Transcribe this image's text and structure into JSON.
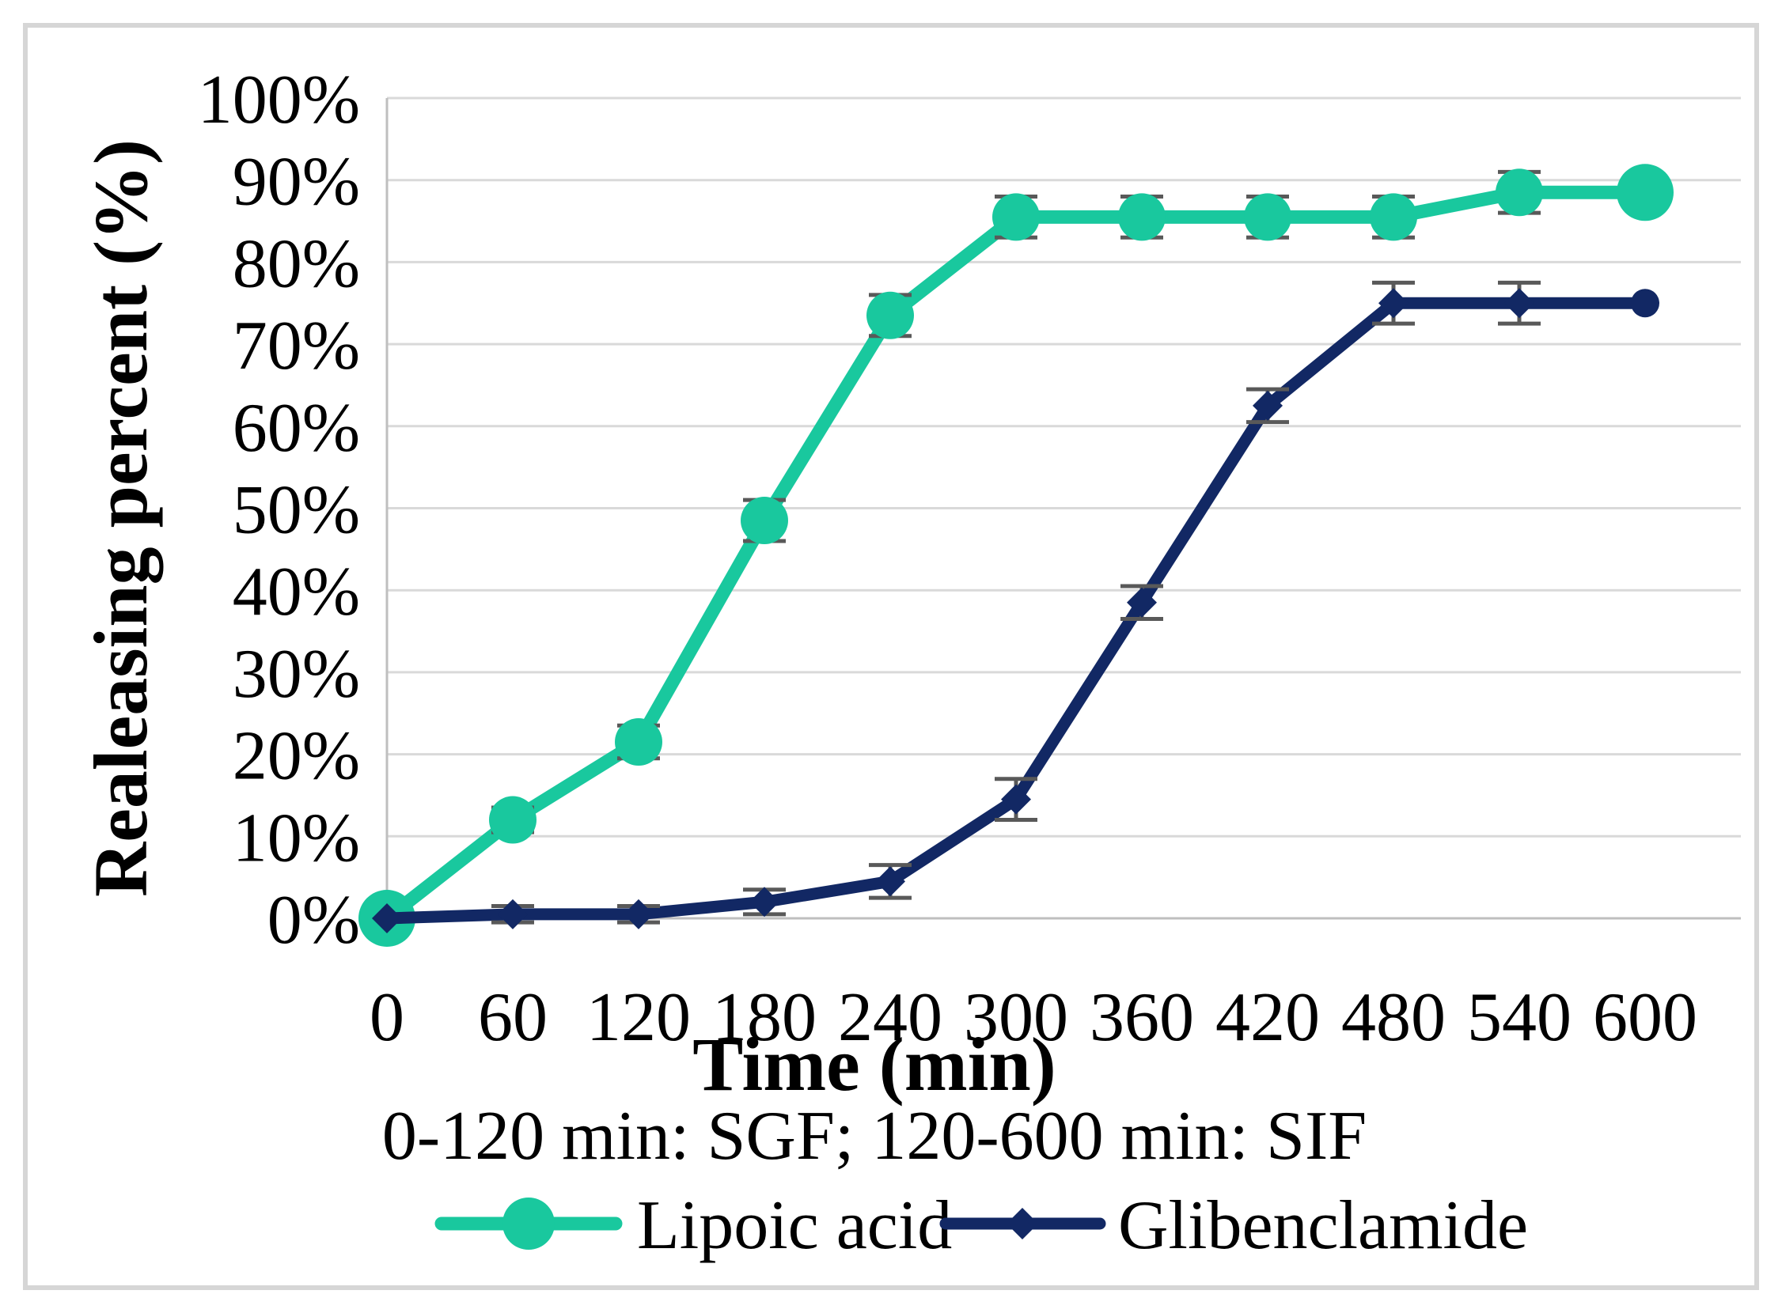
{
  "chart_data": {
    "type": "line",
    "title": "",
    "xlabel": "Time (min)",
    "x_sublabel": "0-120 min: SGF; 120-600 min: SIF",
    "ylabel": "Realeasing percent (%)",
    "x": [
      0,
      60,
      120,
      180,
      240,
      300,
      360,
      420,
      480,
      540,
      600
    ],
    "x_tick_labels": [
      "0",
      "60",
      "120",
      "180",
      "240",
      "300",
      "360",
      "420",
      "480",
      "540",
      "600"
    ],
    "y_tick_labels": [
      "0%",
      "10%",
      "20%",
      "30%",
      "40%",
      "50%",
      "60%",
      "70%",
      "80%",
      "90%",
      "100%"
    ],
    "ylim": [
      0,
      100
    ],
    "y_tick_step": 10,
    "grid": true,
    "legend_position": "bottom",
    "series": [
      {
        "name": "Lipoic acid",
        "color": "#19C89E",
        "marker": "circle",
        "values": [
          0,
          12,
          21.5,
          48.5,
          73.5,
          85.5,
          85.5,
          85.5,
          85.5,
          88.5,
          88.5
        ],
        "errors": [
          0,
          1.5,
          2,
          2.5,
          2.5,
          2.5,
          2.5,
          2.5,
          2.5,
          2.5,
          0
        ]
      },
      {
        "name": "Glibenclamide",
        "color": "#122864",
        "marker": "diamond",
        "values": [
          0,
          0.5,
          0.5,
          2,
          4.5,
          14.5,
          38.5,
          62.5,
          75,
          75,
          75
        ],
        "errors": [
          0,
          1,
          1,
          1.5,
          2,
          2.5,
          2,
          2,
          2.5,
          2.5,
          0
        ]
      }
    ],
    "colors": {
      "gridline": "#D9D9D9",
      "axis": "#BFBFBF",
      "error_bar": "#595959",
      "frame": "#D6D6D6",
      "text": "#000000"
    }
  }
}
